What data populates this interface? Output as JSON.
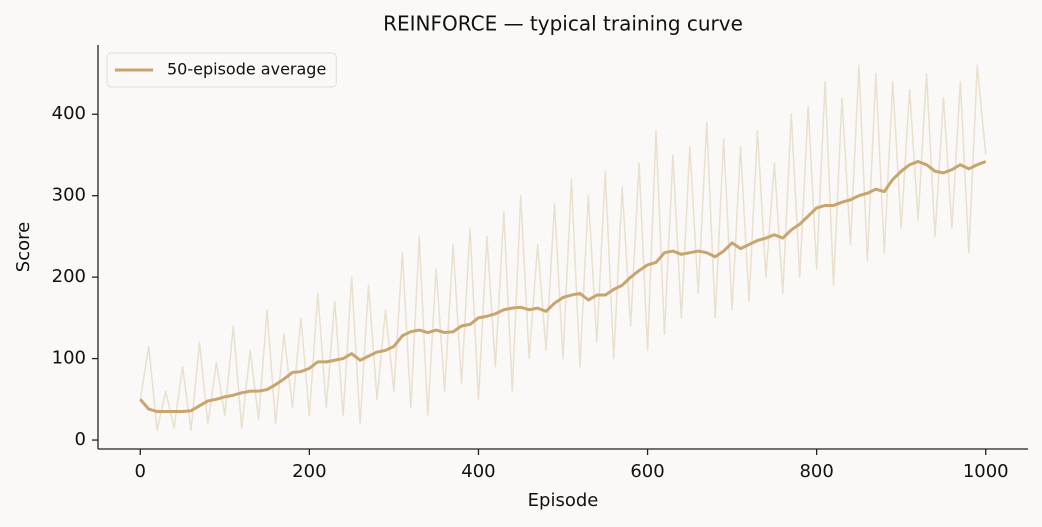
{
  "chart_data": {
    "type": "line",
    "title": "REINFORCE — typical training curve",
    "xlabel": "Episode",
    "ylabel": "Score",
    "x": [
      0,
      10,
      20,
      30,
      40,
      50,
      60,
      70,
      80,
      90,
      100,
      110,
      120,
      130,
      140,
      150,
      160,
      170,
      180,
      190,
      200,
      210,
      220,
      230,
      240,
      250,
      260,
      270,
      280,
      290,
      300,
      310,
      320,
      330,
      340,
      350,
      360,
      370,
      380,
      390,
      400,
      410,
      420,
      430,
      440,
      450,
      460,
      470,
      480,
      490,
      500,
      510,
      520,
      530,
      540,
      550,
      560,
      570,
      580,
      590,
      600,
      610,
      620,
      630,
      640,
      650,
      660,
      670,
      680,
      690,
      700,
      710,
      720,
      730,
      740,
      750,
      760,
      770,
      780,
      790,
      800,
      810,
      820,
      830,
      840,
      850,
      860,
      870,
      880,
      890,
      900,
      910,
      920,
      930,
      940,
      950,
      960,
      970,
      980,
      990,
      1000
    ],
    "series": [
      {
        "color": "#c8a46e",
        "opacity": 0.3,
        "width": 1.5,
        "values": [
          50,
          115,
          12,
          60,
          15,
          90,
          12,
          120,
          20,
          95,
          30,
          140,
          15,
          110,
          25,
          160,
          20,
          130,
          40,
          150,
          30,
          180,
          40,
          170,
          30,
          200,
          20,
          190,
          50,
          160,
          60,
          230,
          40,
          250,
          30,
          210,
          60,
          240,
          70,
          260,
          50,
          250,
          90,
          280,
          60,
          300,
          100,
          240,
          110,
          290,
          100,
          320,
          90,
          300,
          120,
          330,
          100,
          310,
          140,
          340,
          110,
          380,
          130,
          350,
          150,
          360,
          180,
          390,
          150,
          370,
          160,
          360,
          170,
          380,
          200,
          340,
          180,
          400,
          200,
          410,
          210,
          440,
          190,
          420,
          240,
          460,
          220,
          450,
          230,
          440,
          260,
          430,
          270,
          450,
          250,
          420,
          260,
          440,
          230,
          460,
          350
        ]
      },
      {
        "name": "50-episode average",
        "color": "#c8a46e",
        "opacity": 1,
        "width": 3,
        "values": [
          50,
          38,
          35,
          35,
          35,
          35,
          36,
          42,
          48,
          50,
          53,
          55,
          58,
          60,
          60,
          62,
          68,
          75,
          83,
          84,
          88,
          96,
          96,
          98,
          100,
          106,
          98,
          103,
          108,
          110,
          115,
          128,
          133,
          135,
          132,
          135,
          132,
          133,
          140,
          142,
          150,
          152,
          155,
          160,
          162,
          163,
          160,
          162,
          158,
          168,
          175,
          178,
          180,
          172,
          178,
          178,
          185,
          190,
          200,
          208,
          215,
          218,
          230,
          232,
          228,
          230,
          232,
          230,
          225,
          232,
          242,
          235,
          240,
          245,
          248,
          252,
          248,
          258,
          265,
          275,
          285,
          288,
          288,
          292,
          295,
          300,
          303,
          308,
          305,
          320,
          330,
          338,
          342,
          338,
          330,
          328,
          332,
          338,
          333,
          338,
          342
        ]
      }
    ],
    "xlim": [
      -50,
      1050
    ],
    "ylim": [
      -11,
      485
    ],
    "xticks": [
      0,
      200,
      400,
      600,
      800,
      1000
    ],
    "yticks": [
      0,
      100,
      200,
      300,
      400
    ],
    "legend": "upper-left"
  }
}
